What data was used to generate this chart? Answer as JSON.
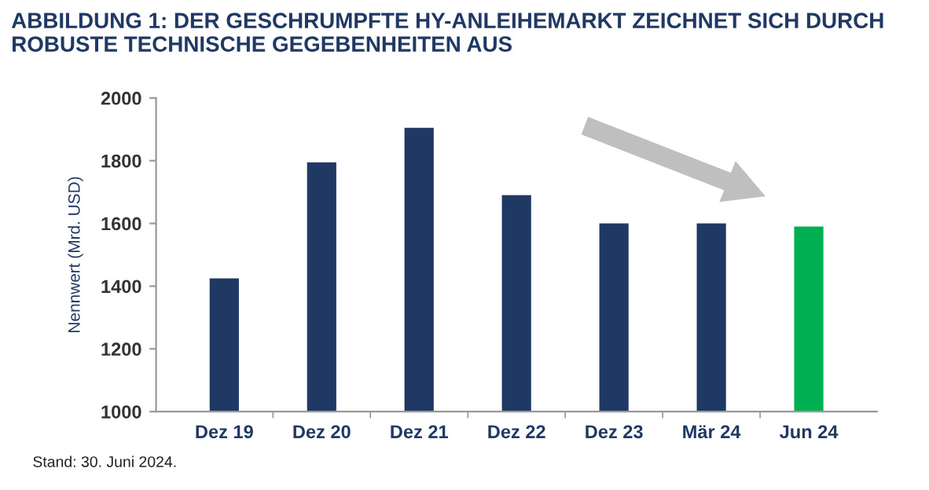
{
  "chart_data": {
    "type": "bar",
    "title": "ABBILDUNG 1: DER GESCHRUMPFTE HY-ANLEIHEMARKT ZEICHNET SICH DURCH ROBUSTE TECHNISCHE GEGEBENHEITEN AUS",
    "ylabel": "Nennwert (Mrd. USD)",
    "categories": [
      "Dez 19",
      "Dez 20",
      "Dez 21",
      "Dez 22",
      "Dez 23",
      "Mär 24",
      "Jun 24"
    ],
    "values": [
      1425,
      1795,
      1905,
      1690,
      1600,
      1600,
      1590
    ],
    "colors": [
      "#1f3864",
      "#1f3864",
      "#1f3864",
      "#1f3864",
      "#1f3864",
      "#1f3864",
      "#00b050"
    ],
    "ylim": [
      1000,
      2000
    ],
    "yticks": [
      1000,
      1200,
      1400,
      1600,
      1800,
      2000
    ],
    "annotations": [
      "Stand: 30. Juni 2024."
    ]
  }
}
